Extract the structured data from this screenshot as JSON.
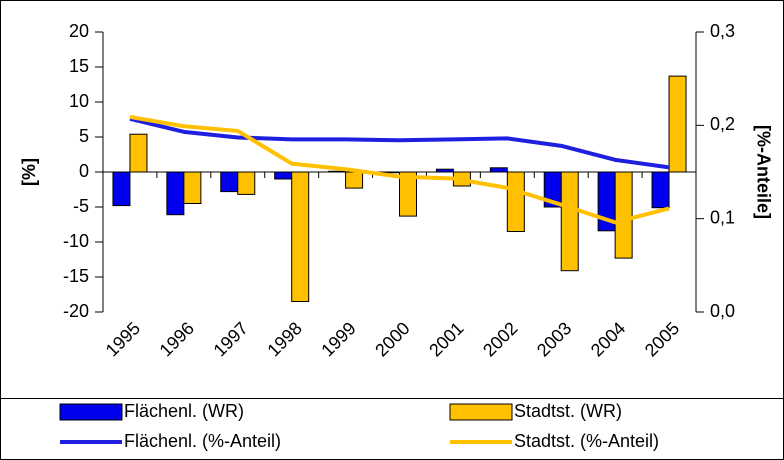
{
  "chart_data": {
    "type": "bar",
    "categories": [
      "1995",
      "1996",
      "1997",
      "1998",
      "1999",
      "2000",
      "2001",
      "2002",
      "2003",
      "2004",
      "2005"
    ],
    "ylabel": "[%]",
    "y2label": "[%-Anteile]",
    "ylim": [
      -20,
      20
    ],
    "yticks": [
      -20,
      -15,
      -10,
      -5,
      0,
      5,
      10,
      15,
      20
    ],
    "y2lim": [
      0,
      0.3
    ],
    "y2ticks": [
      {
        "value": 0,
        "label": "0,0"
      },
      {
        "value": 0.1,
        "label": "0,1"
      },
      {
        "value": 0.2,
        "label": "0,2"
      },
      {
        "value": 0.3,
        "label": "0,3"
      }
    ],
    "series": [
      {
        "name": "Flächenl. (WR)",
        "type": "bar",
        "color": "#0000ee",
        "values": [
          -4.8,
          -6.1,
          -2.8,
          -1.0,
          0.1,
          -0.1,
          0.4,
          0.6,
          -5.0,
          -8.4,
          -5.1
        ]
      },
      {
        "name": "Stadtst. (WR)",
        "type": "bar",
        "color": "#ffc000",
        "values": [
          5.4,
          -4.5,
          -3.2,
          -18.5,
          -2.3,
          -6.3,
          -2.0,
          -8.5,
          -14.1,
          -12.3,
          13.7
        ]
      },
      {
        "name": "Flächenl. (%-Anteil)",
        "type": "line",
        "axis": "y2",
        "color": "#1f1fe0",
        "values": [
          0.207,
          0.193,
          0.187,
          0.185,
          0.185,
          0.184,
          0.185,
          0.186,
          0.178,
          0.163,
          0.155
        ]
      },
      {
        "name": "Stadtst. (%-Anteil)",
        "type": "line",
        "axis": "y2",
        "color": "#ffc000",
        "values": [
          0.209,
          0.199,
          0.194,
          0.159,
          0.153,
          0.145,
          0.143,
          0.133,
          0.115,
          0.096,
          0.111
        ]
      }
    ]
  }
}
